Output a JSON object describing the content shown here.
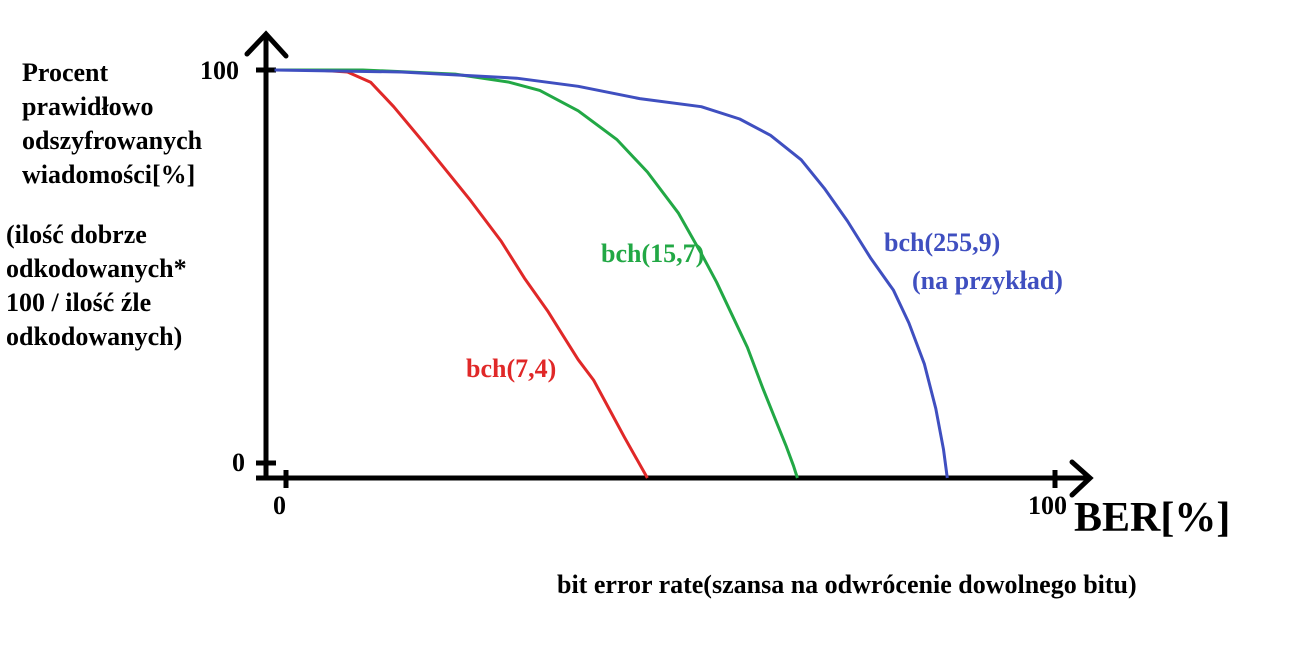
{
  "chart_data": {
    "type": "line",
    "ylabel_lines": [
      "Procent",
      "prawidłowo",
      "odszyfrowanych",
      "wiadomości[%]"
    ],
    "ylabel_note_lines": [
      "(ilość dobrze",
      "odkodowanych*",
      "100 / ilość źle",
      "odkodowanych)"
    ],
    "xlabel": "BER[%]",
    "xlabel_note": "bit error rate(szansa na odwrócenie dowolnego bitu)",
    "x_ticks": [
      "0",
      "100"
    ],
    "y_ticks": [
      "100",
      "0"
    ],
    "xlim": [
      0,
      100
    ],
    "ylim": [
      0,
      100
    ],
    "series": [
      {
        "name": "bch(7,4)",
        "color": "#e02828",
        "x": [
          -1.5,
          4,
          8,
          11,
          14,
          18,
          24,
          28,
          31,
          34,
          36,
          38,
          40,
          42,
          44,
          45.5,
          47
        ],
        "y": [
          100,
          100,
          99.5,
          97,
          91,
          82,
          68,
          58,
          49,
          41,
          35,
          29,
          24,
          17,
          10,
          5,
          0
        ]
      },
      {
        "name": "bch(15,7)",
        "color": "#22a845",
        "x": [
          -1.5,
          10,
          22,
          29,
          33,
          38,
          43,
          47,
          51,
          54,
          56,
          58,
          60,
          62,
          63.5,
          65,
          66,
          66.5
        ],
        "y": [
          100,
          100,
          99,
          97,
          95,
          90,
          83,
          75,
          65,
          55,
          48,
          40,
          32,
          22,
          15,
          8,
          3,
          0
        ]
      },
      {
        "name": "bch(255,9)",
        "color": "#3f4fc0",
        "names_note": "(na przykład)",
        "x": [
          -1.5,
          15,
          30,
          38,
          46,
          54,
          59,
          63,
          67,
          70,
          73,
          76,
          79,
          81,
          83,
          84.5,
          85.5,
          86
        ],
        "y": [
          100,
          99.5,
          98,
          96,
          93,
          91,
          88,
          84,
          78,
          71,
          63,
          54,
          46,
          38,
          28,
          17,
          7,
          0
        ]
      }
    ],
    "series_labels": [
      "bch(7,4)",
      "bch(15,7)",
      "bch(255,9)",
      "(na przykład)"
    ],
    "grid": false,
    "legend": "inline labels near curves"
  }
}
